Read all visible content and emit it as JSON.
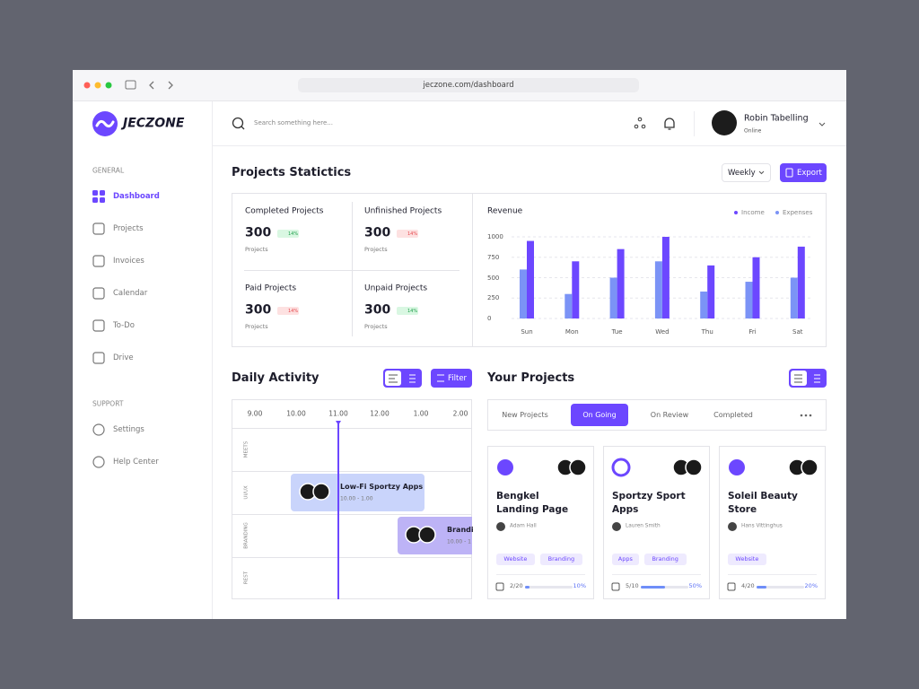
{
  "browser": {
    "url": "jeczone.com/dashboard"
  },
  "sidebar": {
    "logo": "JECZONE",
    "general_label": "GENERAL",
    "general_items": [
      "Dashboard",
      "Projects",
      "Invoices",
      "Calendar",
      "To-Do",
      "Drive"
    ],
    "active_item": 0,
    "support_label": "SUPPORT",
    "support_items": [
      "Settings",
      "Help Center"
    ]
  },
  "header": {
    "search_placeholder": "Search something here...",
    "user_name": "Robin Tabelling",
    "user_status": "Online"
  },
  "stats": {
    "title": "Projects Statictics",
    "period": "Weekly",
    "export": "Export",
    "cards": [
      {
        "label": "Completed Projects",
        "value": 300,
        "change": "14%",
        "trend": "up",
        "unit": "Projects"
      },
      {
        "label": "Unfinished Projects",
        "value": 300,
        "change": "14%",
        "trend": "down",
        "unit": "Projects"
      },
      {
        "label": "Paid Projects",
        "value": 300,
        "change": "14%",
        "trend": "down",
        "unit": "Projects"
      },
      {
        "label": "Unpaid Projects",
        "value": 300,
        "change": "14%",
        "trend": "up",
        "unit": "Projects"
      }
    ]
  },
  "revenue": {
    "type": "bar",
    "title": "Revenue",
    "categories": [
      "Sun",
      "Mon",
      "Tue",
      "Wed",
      "Thu",
      "Fri",
      "Sat"
    ],
    "series": [
      {
        "name": "Income",
        "color": "#6c47ff",
        "values": [
          950,
          700,
          850,
          1000,
          650,
          750,
          880
        ]
      },
      {
        "name": "Expenses",
        "color": "#7b93f6",
        "values": [
          600,
          300,
          500,
          700,
          330,
          450,
          500
        ]
      }
    ],
    "ylim": [
      0,
      1000
    ],
    "yticks": [
      0,
      250,
      500,
      750,
      1000
    ],
    "grid": true
  },
  "daily_activity": {
    "title": "Daily Activity",
    "filter": "Filter",
    "times": [
      "9.00",
      "10.00",
      "11.00",
      "12.00",
      "1.00",
      "2.00"
    ],
    "current_time": 2,
    "rows": [
      "MEETS",
      "UI/UX",
      "BRANDING",
      "REST"
    ],
    "events": [
      {
        "title": "Low-Fi Sportzy Apps",
        "time": "10.00 - 1.00"
      },
      {
        "title": "Brandi",
        "time": "10.00 - 1"
      }
    ]
  },
  "projects": {
    "title": "Your Projects",
    "tabs": [
      "New Projects",
      "On Going",
      "On Review",
      "Completed"
    ],
    "active_tab": 1,
    "cards": [
      {
        "title": "Bengkel Landing Page",
        "owner": "Adam Hall",
        "tags": [
          "Website",
          "Branding"
        ],
        "tasks": "2/20",
        "progress": 10,
        "progress_label": "10%"
      },
      {
        "title": "Sportzy Sport Apps",
        "owner": "Lauren Smith",
        "tags": [
          "Apps",
          "Branding"
        ],
        "tasks": "5/10",
        "progress": 50,
        "progress_label": "50%"
      },
      {
        "title": "Soleil Beauty Store",
        "owner": "Hans Vittinghus",
        "tags": [
          "Website"
        ],
        "tasks": "4/20",
        "progress": 20,
        "progress_label": "20%"
      }
    ]
  }
}
